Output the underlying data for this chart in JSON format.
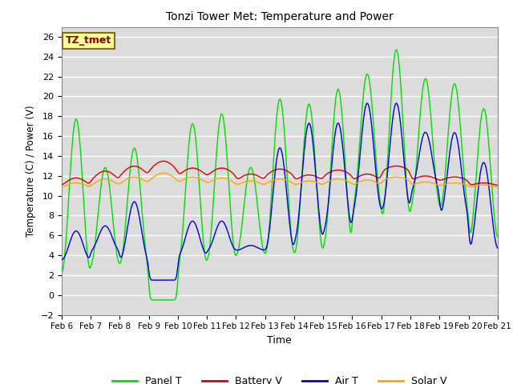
{
  "title": "Tonzi Tower Met: Temperature and Power",
  "xlabel": "Time",
  "ylabel": "Temperature (C) / Power (V)",
  "ylim": [
    -2,
    27
  ],
  "yticks": [
    -2,
    0,
    2,
    4,
    6,
    8,
    10,
    12,
    14,
    16,
    18,
    20,
    22,
    24,
    26
  ],
  "x_tick_labels": [
    "Feb 6",
    "Feb 7",
    "Feb 8",
    "Feb 9",
    "Feb 10",
    "Feb 11",
    "Feb 12",
    "Feb 13",
    "Feb 14",
    "Feb 15",
    "Feb 16",
    "Feb 17",
    "Feb 18",
    "Feb 19",
    "Feb 20",
    "Feb 21"
  ],
  "annotation_text": "TZ_tmet",
  "annotation_color": "#8B0000",
  "annotation_bg": "#FFFF99",
  "annotation_border": "#8B6914",
  "fig_bg": "#FFFFFF",
  "plot_bg": "#DCDCDC",
  "grid_color": "#FFFFFF",
  "colors": {
    "Panel T": "#00DD00",
    "Battery V": "#DD0000",
    "Air T": "#0000DD",
    "Solar V": "#FFA500"
  },
  "legend_labels": [
    "Panel T",
    "Battery V",
    "Air T",
    "Solar V"
  ]
}
